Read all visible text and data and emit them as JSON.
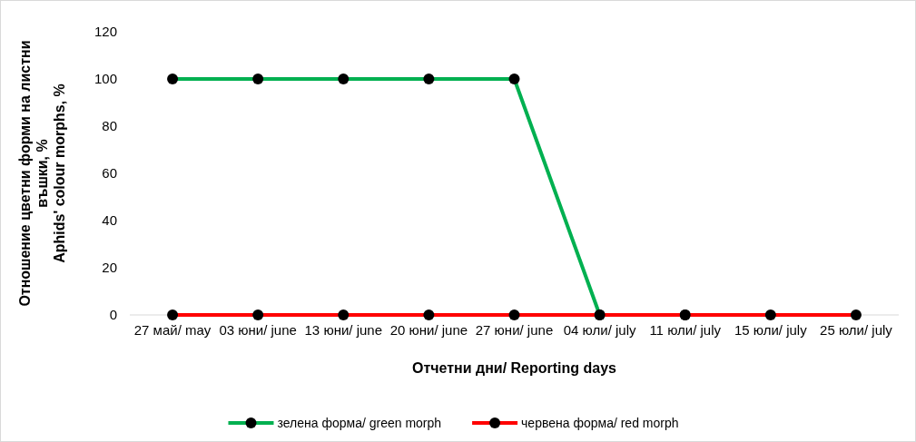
{
  "chart_data": {
    "type": "line",
    "xlabel": "Отчетни дни/ Reporting days",
    "ylabel": "Отношение цветни форми на листни въшки, %\nAphids' colour morphs, %",
    "categories": [
      "27 май/ may",
      "03 юни/ june",
      "13 юни/ june",
      "20 юни/ june",
      "27 юни/ june",
      "04 юли/ july",
      "11 юли/ july",
      "15 юли/ july",
      "25 юли/ july"
    ],
    "series": [
      {
        "name": "зелена форма/ green morph",
        "color": "#00b050",
        "values": [
          100,
          100,
          100,
          100,
          100,
          0,
          0,
          null,
          null
        ]
      },
      {
        "name": "червена форма/ red morph",
        "color": "#ff0000",
        "values": [
          0,
          0,
          0,
          0,
          0,
          0,
          0,
          0,
          0
        ]
      }
    ],
    "ylim": [
      0,
      120
    ],
    "yticks": [
      0,
      20,
      40,
      60,
      80,
      100,
      120
    ],
    "grid": false,
    "legend": "bottom",
    "marker": "circle",
    "line_style": "solid"
  }
}
